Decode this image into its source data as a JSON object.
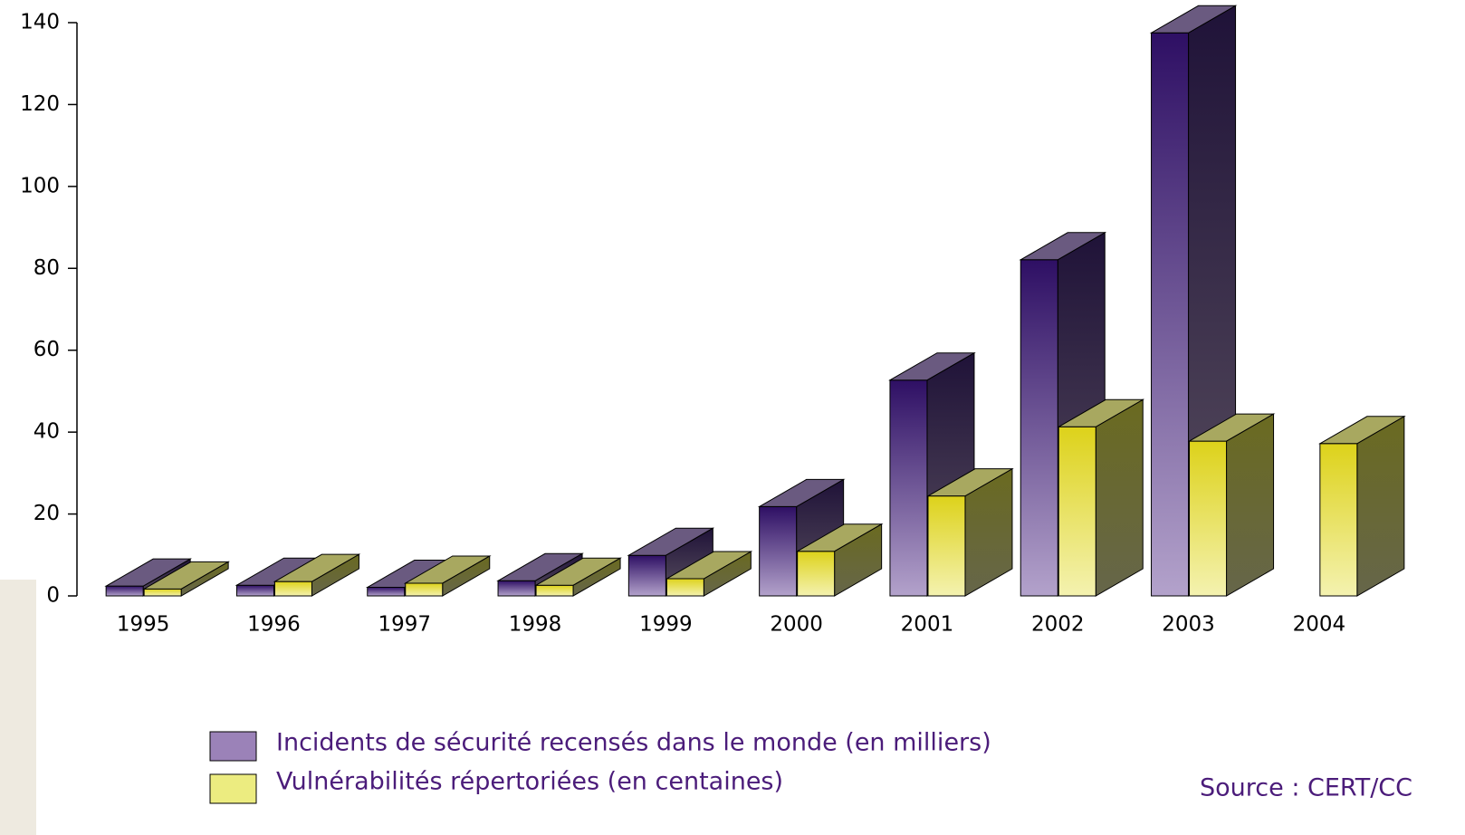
{
  "chart_data": {
    "type": "bar3d",
    "categories": [
      "1995",
      "1996",
      "1997",
      "1998",
      "1999",
      "2000",
      "2001",
      "2002",
      "2003",
      "2004"
    ],
    "series": [
      {
        "name": "Incidents de sécurité recensés dans le monde (en milliers)",
        "color": "#9b82b8",
        "values": [
          2.4,
          2.6,
          2.1,
          3.7,
          9.9,
          21.8,
          52.7,
          82.1,
          137.5,
          null
        ]
      },
      {
        "name": "Vulnérabilités répertoriées (en centaines)",
        "color": "#ecec80",
        "values": [
          1.7,
          3.5,
          3.1,
          2.6,
          4.2,
          10.9,
          24.4,
          41.3,
          37.8,
          37.2
        ]
      }
    ],
    "ylim": [
      0,
      140
    ],
    "yticks": [
      0,
      20,
      40,
      60,
      80,
      100,
      120,
      140
    ],
    "source": "Source : CERT/CC"
  }
}
